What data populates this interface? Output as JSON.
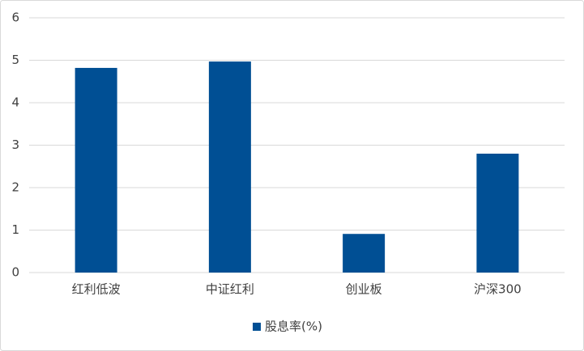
{
  "chart_data": {
    "type": "bar",
    "categories": [
      "红利低波",
      "中证红利",
      "创业板",
      "沪深300"
    ],
    "series": [
      {
        "name": "股息率(%)",
        "color": "#004f94",
        "values": [
          4.82,
          4.97,
          0.91,
          2.8
        ]
      }
    ],
    "ylim": [
      0,
      6
    ],
    "yticks": [
      0,
      1,
      2,
      3,
      4,
      5,
      6
    ],
    "grid": true,
    "legend": "bottom"
  }
}
